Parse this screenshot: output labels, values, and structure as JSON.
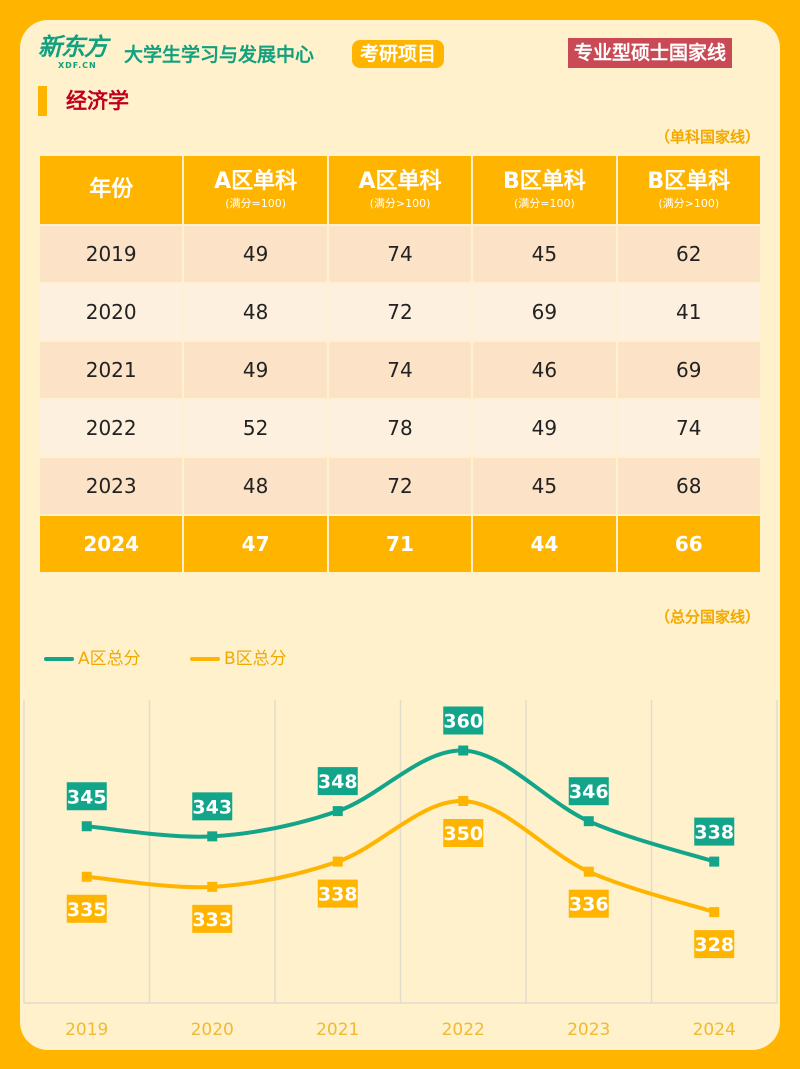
{
  "header": {
    "logo": "新东方",
    "logo_sub": "XDF.CN",
    "center": "大学生学习与发展中心",
    "project": "考研项目",
    "badge": "专业型硕士国家线"
  },
  "subject": "经济学",
  "table_note": "（单科国家线）",
  "table": {
    "headers": [
      {
        "title": "年份",
        "sub": ""
      },
      {
        "title": "A区单科",
        "sub": "(满分=100)"
      },
      {
        "title": "A区单科",
        "sub": "(满分>100)"
      },
      {
        "title": "B区单科",
        "sub": "(满分=100)"
      },
      {
        "title": "B区单科",
        "sub": "(满分>100)"
      }
    ],
    "rows": [
      [
        "2019",
        "49",
        "74",
        "45",
        "62"
      ],
      [
        "2020",
        "48",
        "72",
        "69",
        "41"
      ],
      [
        "2021",
        "49",
        "74",
        "46",
        "69"
      ],
      [
        "2022",
        "52",
        "78",
        "49",
        "74"
      ],
      [
        "2023",
        "48",
        "72",
        "45",
        "68"
      ],
      [
        "2024",
        "47",
        "71",
        "44",
        "66"
      ]
    ]
  },
  "chart_note": "（总分国家线）",
  "chart_data": {
    "type": "line",
    "categories": [
      "2019",
      "2020",
      "2021",
      "2022",
      "2023",
      "2024"
    ],
    "ylim": [
      310,
      370
    ],
    "grid": "vertical",
    "legend": "top-left",
    "series": [
      {
        "name": "A区总分",
        "color": "#13A58A",
        "values": [
          345,
          343,
          348,
          360,
          346,
          338
        ]
      },
      {
        "name": "B区总分",
        "color": "#FFB400",
        "values": [
          335,
          333,
          338,
          350,
          336,
          328
        ]
      }
    ]
  }
}
